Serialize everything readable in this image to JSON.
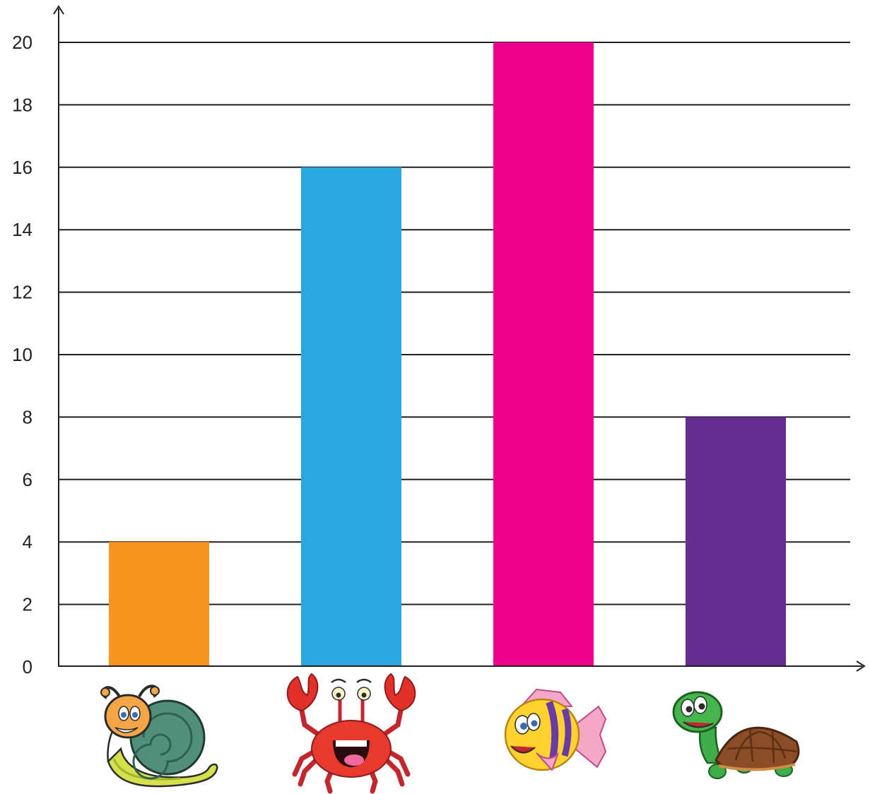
{
  "chart_data": {
    "type": "bar",
    "title": "",
    "xlabel": "",
    "ylabel": "",
    "ylim": [
      0,
      20
    ],
    "yticks": [
      0,
      2,
      4,
      6,
      8,
      10,
      12,
      14,
      16,
      18,
      20
    ],
    "grid": true,
    "categories": [
      "snail",
      "crab",
      "fish",
      "turtle"
    ],
    "category_icons": [
      "snail-icon",
      "crab-icon",
      "fish-icon",
      "turtle-icon"
    ],
    "values": [
      4,
      16,
      20,
      8
    ],
    "colors": [
      "#f7941d",
      "#29a8e0",
      "#ec008c",
      "#662d91"
    ]
  }
}
